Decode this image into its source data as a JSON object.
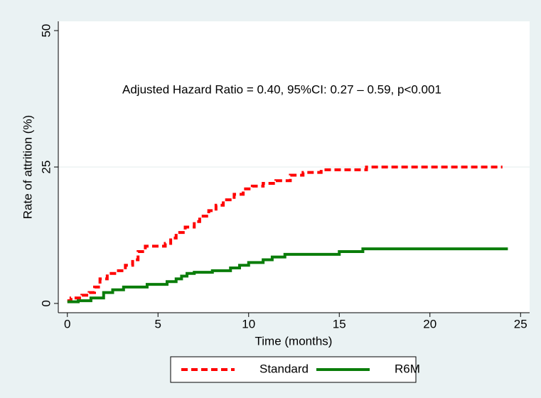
{
  "chart_data": {
    "type": "step",
    "annotation": "Adjusted Hazard Ratio = 0.40, 95%CI: 0.27 – 0.59, p<0.001",
    "x_label": "Time (months)",
    "y_label": "Rate of attrition (%)",
    "xlim": [
      -0.5,
      25.5
    ],
    "ylim": [
      -1.7,
      51.7
    ],
    "xticks": [
      0,
      5,
      10,
      15,
      20,
      25
    ],
    "yticks": [
      0,
      25,
      50
    ],
    "grid": true,
    "series": [
      {
        "name": "Standard",
        "color": "#ff0000",
        "dash": true,
        "x": [
          0,
          0.2,
          0.8,
          1.2,
          1.5,
          1.8,
          2.2,
          2.7,
          3.2,
          3.6,
          3.9,
          4.3,
          5.4,
          5.7,
          6.0,
          6.5,
          7.0,
          7.3,
          7.8,
          8.2,
          8.6,
          9.2,
          9.7,
          10.2,
          10.8,
          11.5,
          12.3,
          13.0,
          14.0,
          16.5,
          24.0
        ],
        "values": [
          0.5,
          1,
          1.5,
          2,
          3,
          4.5,
          5.5,
          6,
          7,
          8,
          9.5,
          10.5,
          11,
          12,
          13,
          14,
          15,
          16,
          17,
          18,
          19,
          20,
          21,
          21.5,
          22,
          22.5,
          23.5,
          24,
          24.5,
          25,
          25
        ]
      },
      {
        "name": "R6M",
        "color": "#0a7d0a",
        "dash": false,
        "x": [
          0,
          0.6,
          1.3,
          2.0,
          2.5,
          3.1,
          4.4,
          5.5,
          6.0,
          6.3,
          6.6,
          7.0,
          8.0,
          9.0,
          9.5,
          10.0,
          10.8,
          11.3,
          12.0,
          15.0,
          16.3,
          24.3
        ],
        "values": [
          0.3,
          0.5,
          1,
          2,
          2.5,
          3,
          3.5,
          4,
          4.5,
          5,
          5.5,
          5.7,
          6,
          6.5,
          7,
          7.5,
          8,
          8.5,
          9,
          9.5,
          10,
          10
        ]
      }
    ]
  }
}
